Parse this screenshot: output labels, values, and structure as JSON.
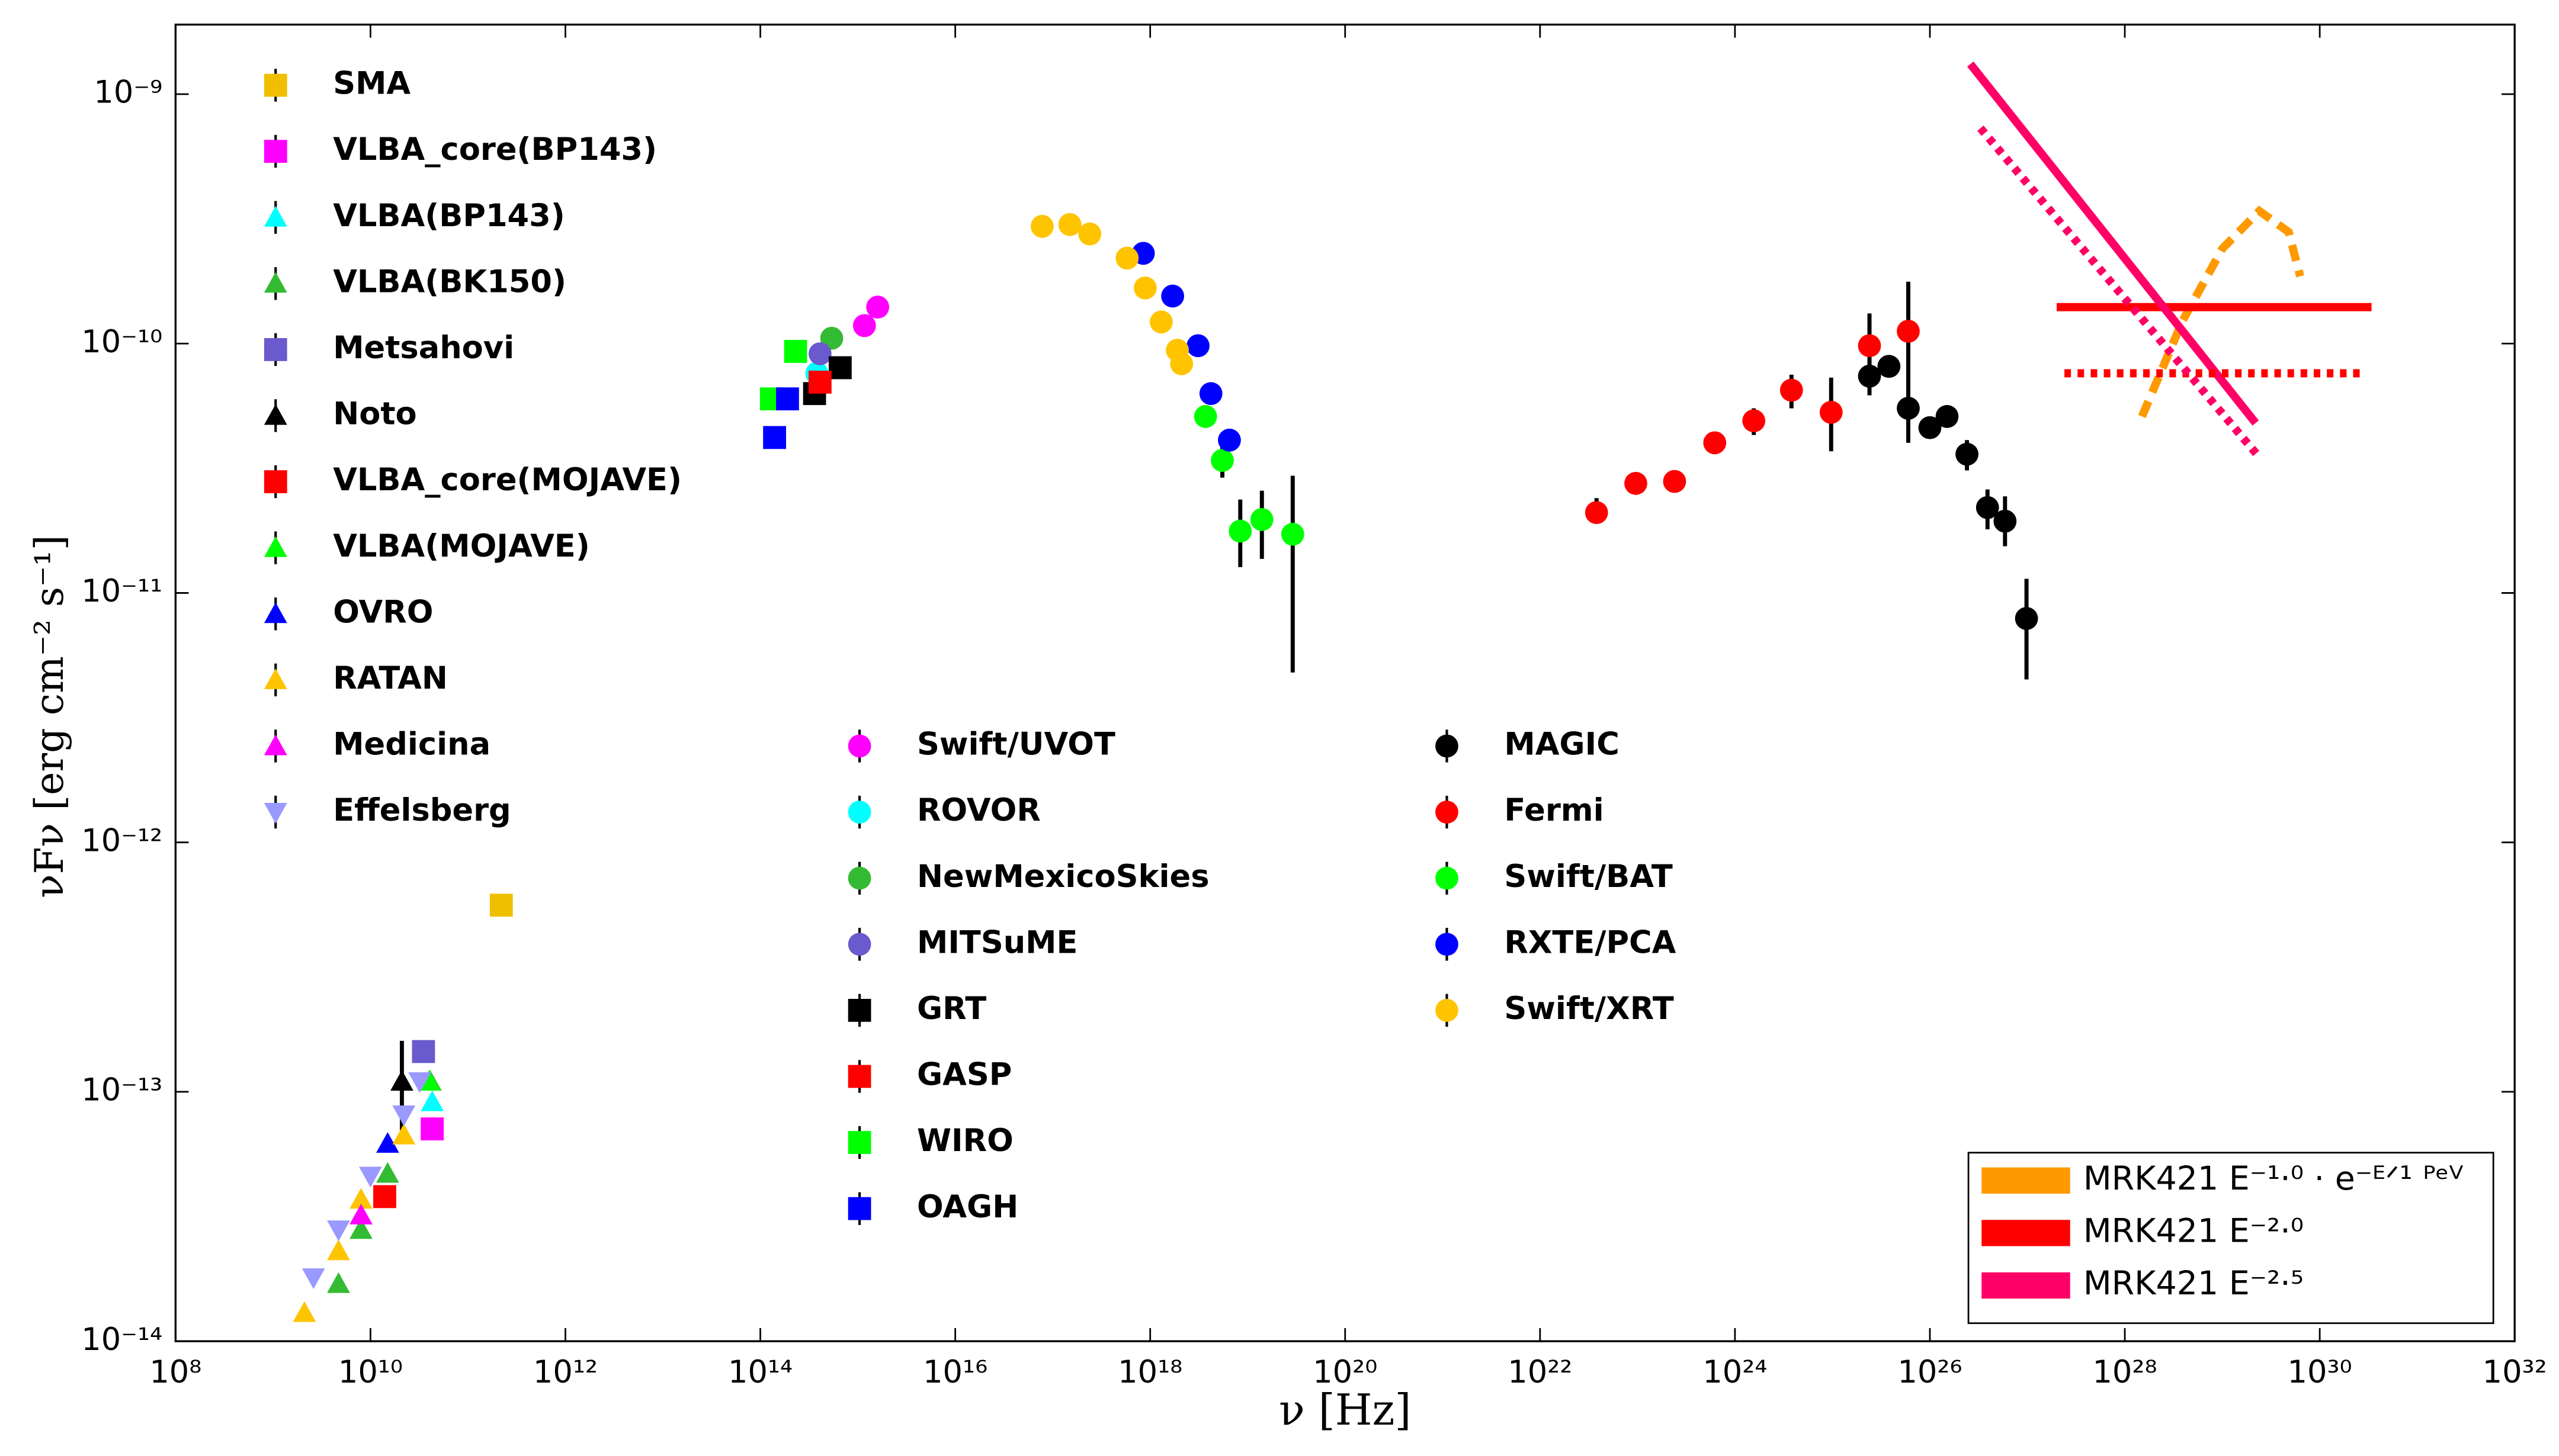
{
  "chart_data": {
    "type": "scatter",
    "log_x": true,
    "log_y": true,
    "xlabel": "ν [Hz]",
    "ylabel": "νFν [erg cm⁻² s⁻¹]",
    "xlim": [
      100000000.0,
      1e+32
    ],
    "ylim": [
      1e-14,
      1.9e-09
    ],
    "xticks": [
      {
        "value": 100000000.0,
        "label": "10⁸"
      },
      {
        "value": 10000000000.0,
        "label": "10¹⁰"
      },
      {
        "value": 1000000000000.0,
        "label": "10¹²"
      },
      {
        "value": 100000000000000.0,
        "label": "10¹⁴"
      },
      {
        "value": 1e+16,
        "label": "10¹⁶"
      },
      {
        "value": 1e+18,
        "label": "10¹⁸"
      },
      {
        "value": 1e+20,
        "label": "10²⁰"
      },
      {
        "value": 1e+22,
        "label": "10²²"
      },
      {
        "value": 1e+24,
        "label": "10²⁴"
      },
      {
        "value": 1e+26,
        "label": "10²⁶"
      },
      {
        "value": 1e+28,
        "label": "10²⁸"
      },
      {
        "value": 1e+30,
        "label": "10³⁰"
      },
      {
        "value": 1e+32,
        "label": "10³²"
      }
    ],
    "yticks": [
      {
        "value": 1e-14,
        "label": "10⁻¹⁴"
      },
      {
        "value": 1e-13,
        "label": "10⁻¹³"
      },
      {
        "value": 1e-12,
        "label": "10⁻¹²"
      },
      {
        "value": 1e-11,
        "label": "10⁻¹¹"
      },
      {
        "value": 1e-10,
        "label": "10⁻¹⁰"
      },
      {
        "value": 1e-09,
        "label": "10⁻⁹"
      }
    ],
    "legend": "lower right",
    "series": [
      {
        "name": "SMA",
        "color": "#f0c000",
        "marker": "square",
        "x": [
          220000000000.0
        ],
        "y": [
          5.6e-13
        ]
      },
      {
        "name": "VLBA_core(BP143)",
        "color": "#ff00ff",
        "marker": "square",
        "x": [
          43000000000.0
        ],
        "y": [
          7.1e-14
        ]
      },
      {
        "name": "VLBA(BP143)",
        "color": "#00ffff",
        "marker": "triangle",
        "x": [
          43000000000.0
        ],
        "y": [
          9.1e-14
        ]
      },
      {
        "name": "VLBA(BK150)",
        "color": "#33bb33",
        "marker": "triangle",
        "x": [
          4700000000.0,
          8000000000.0,
          15000000000.0,
          41000000000.0
        ],
        "y": [
          1.7e-14,
          2.8e-14,
          4.7e-14,
          1.1e-13
        ]
      },
      {
        "name": "Metsahovi",
        "color": "#6a5acd",
        "marker": "square",
        "x": [
          35000000000.0
        ],
        "y": [
          1.45e-13
        ]
      },
      {
        "name": "Noto",
        "color": "#000000",
        "marker": "triangle",
        "x": [
          21000000000.0
        ],
        "y": [
          1.1e-13
        ],
        "errors": [
          [
            4e-14,
            5e-14
          ]
        ]
      },
      {
        "name": "VLBA_core(MOJAVE)",
        "color": "#ff0000",
        "marker": "square",
        "x": [
          14000000000.0
        ],
        "y": [
          3.8e-14
        ]
      },
      {
        "name": "VLBA(MOJAVE)",
        "color": "#00ff00",
        "marker": "triangle",
        "x": [
          40000000000.0
        ],
        "y": [
          1.1e-13
        ]
      },
      {
        "name": "OVRO",
        "color": "#0000ff",
        "marker": "triangle",
        "x": [
          15000000000.0
        ],
        "y": [
          6.2e-14
        ]
      },
      {
        "name": "RATAN",
        "color": "#ffc400",
        "marker": "triangle",
        "x": [
          2100000000.0,
          4700000000.0,
          8000000000.0,
          22000000000.0
        ],
        "y": [
          1.3e-14,
          2.3e-14,
          3.7e-14,
          6.7e-14
        ]
      },
      {
        "name": "Medicina",
        "color": "#ff00ff",
        "marker": "triangle",
        "x": [
          8000000000.0
        ],
        "y": [
          3.2e-14
        ]
      },
      {
        "name": "Effelsberg",
        "color": "#9999ff",
        "marker": "down-triangle",
        "x": [
          2600000000.0,
          4700000000.0,
          10000000000.0,
          22000000000.0,
          32000000000.0
        ],
        "y": [
          1.8e-14,
          2.8e-14,
          4.6e-14,
          8.1e-14,
          1.1e-13
        ]
      },
      {
        "name": "Swift/UVOT",
        "color": "#ff00ff",
        "marker": "circle",
        "x": [
          1170000000000000.0,
          1600000000000000.0
        ],
        "y": [
          1.18e-10,
          1.4e-10
        ]
      },
      {
        "name": "ROVOR",
        "color": "#00ffff",
        "marker": "circle",
        "x": [
          380000000000000.0
        ],
        "y": [
          7.6e-11
        ]
      },
      {
        "name": "NewMexicoSkies",
        "color": "#33bb33",
        "marker": "circle",
        "x": [
          540000000000000.0
        ],
        "y": [
          1.05e-10
        ]
      },
      {
        "name": "MITSuME",
        "color": "#6a5acd",
        "marker": "circle",
        "x": [
          410000000000000.0
        ],
        "y": [
          9.1e-11
        ]
      },
      {
        "name": "GRT",
        "color": "#000000",
        "marker": "square",
        "x": [
          660000000000000.0,
          360000000000000.0
        ],
        "y": [
          8e-11,
          6.3e-11
        ]
      },
      {
        "name": "GASP",
        "color": "#ff0000",
        "marker": "square",
        "x": [
          410000000000000.0
        ],
        "y": [
          7e-11
        ]
      },
      {
        "name": "WIRO",
        "color": "#00ff00",
        "marker": "square",
        "x": [
          230000000000000.0,
          130000000000000.0
        ],
        "y": [
          9.3e-11,
          6e-11
        ]
      },
      {
        "name": "OAGH",
        "color": "#0000ff",
        "marker": "square",
        "x": [
          140000000000000.0,
          190000000000000.0
        ],
        "y": [
          4.2e-11,
          6e-11
        ]
      },
      {
        "name": "MAGIC",
        "color": "#000000",
        "marker": "circle",
        "x": [
          2.4e+25,
          3.8e+25,
          6e+25,
          1e+26,
          1.5e+26,
          2.4e+26,
          3.9e+26,
          5.9e+26,
          9.8e+26
        ],
        "y": [
          7.4e-11,
          8.1e-11,
          5.5e-11,
          4.6e-11,
          5.1e-11,
          3.6e-11,
          2.2e-11,
          1.94e-11,
          7.9e-12
        ],
        "errors": [
          [
            1.2e-11,
            1.4e-11
          ],
          null,
          [
            1.5e-11,
            1.2e-10
          ],
          null,
          null,
          [
            5e-12,
            5e-12
          ],
          [
            4e-12,
            4e-12
          ],
          [
            4e-12,
            5e-12
          ],
          [
            3.4e-12,
            3.5e-12
          ]
        ]
      },
      {
        "name": "Fermi",
        "color": "#ff0000",
        "marker": "circle",
        "x": [
          3.8e+22,
          9.6e+22,
          2.4e+23,
          6.2e+23,
          1.56e+24,
          3.8e+24,
          9.7e+24,
          2.4e+25,
          6e+25
        ],
        "y": [
          2.1e-11,
          2.75e-11,
          2.8e-11,
          4e-11,
          4.9e-11,
          6.5e-11,
          5.3e-11,
          9.8e-11,
          1.12e-10
        ],
        "errors": [
          [
            2e-12,
            3e-12
          ],
          null,
          null,
          null,
          [
            6e-12,
            6e-12
          ],
          [
            1e-11,
            1e-11
          ],
          [
            1.6e-11,
            2e-11
          ],
          [
            2.4e-11,
            3.4e-11
          ],
          [
            5e-11,
            6.5e-11
          ]
        ]
      },
      {
        "name": "Swift/BAT",
        "color": "#00ff00",
        "marker": "circle",
        "x": [
          3.7e+18,
          5.5e+18,
          8.4e+18,
          1.4e+19,
          2.9e+19
        ],
        "y": [
          5.1e-11,
          3.4e-11,
          1.77e-11,
          1.97e-11,
          1.72e-11
        ],
        "errors": [
          null,
          [
            5e-12,
            5e-12
          ],
          [
            5e-12,
            6e-12
          ],
          [
            6e-12,
            6e-12
          ],
          [
            1.24e-11,
            1.23e-11
          ]
        ]
      },
      {
        "name": "RXTE/PCA",
        "color": "#0000ff",
        "marker": "circle",
        "x": [
          8.5e+17,
          1.7e+18,
          3.1e+18,
          4.2e+18,
          6.5e+18
        ],
        "y": [
          2.3e-10,
          1.55e-10,
          9.8e-11,
          6.3e-11,
          4.1e-11
        ]
      },
      {
        "name": "Swift/XRT",
        "color": "#ffc400",
        "marker": "circle",
        "x": [
          7.8e+16,
          1.5e+17,
          2.4e+17,
          5.8e+17,
          8.9e+17,
          1.3e+18,
          1.9e+18,
          2.1e+18
        ],
        "y": [
          2.95e-10,
          3e-10,
          2.75e-10,
          2.2e-10,
          1.67e-10,
          1.22e-10,
          9.4e-11,
          8.3e-11
        ]
      },
      {
        "name": "MRK421 E⁻¹·⁰ · e⁻ᴱᐟ¹ ᴾᵉⱽ",
        "color": "#ff9900",
        "style": "dashed",
        "x": [
          1.5e+28,
          3.9e+28,
          1e+29,
          2.4e+29,
          4.8e+29,
          6.3e+29
        ],
        "y": [
          5.1e-11,
          1.23e-10,
          2.4e-10,
          3.4e-10,
          2.8e-10,
          1.86e-10
        ]
      },
      {
        "name": "MRK421 E⁻²·⁰",
        "color": "#ff0000",
        "style": "solid",
        "x": [
          2e+27,
          3.4e+30
        ],
        "y": [
          1.4e-10,
          1.4e-10
        ]
      },
      {
        "name": "MRK421 E⁻²·⁵",
        "color": "#ff0066",
        "style": "solid",
        "x": [
          2.6e+26,
          2.2e+29
        ],
        "y": [
          1.32e-09,
          4.8e-11
        ]
      },
      {
        "color": "#ff0000",
        "style": "dotted",
        "x": [
          2.4e+27,
          2.7e+30
        ],
        "y": [
          7.6e-11,
          7.6e-11
        ]
      },
      {
        "color": "#ff0066",
        "style": "dotted",
        "x": [
          3.3e+26,
          2.4e+29
        ],
        "y": [
          7.3e-10,
          3.5e-11
        ]
      }
    ]
  }
}
